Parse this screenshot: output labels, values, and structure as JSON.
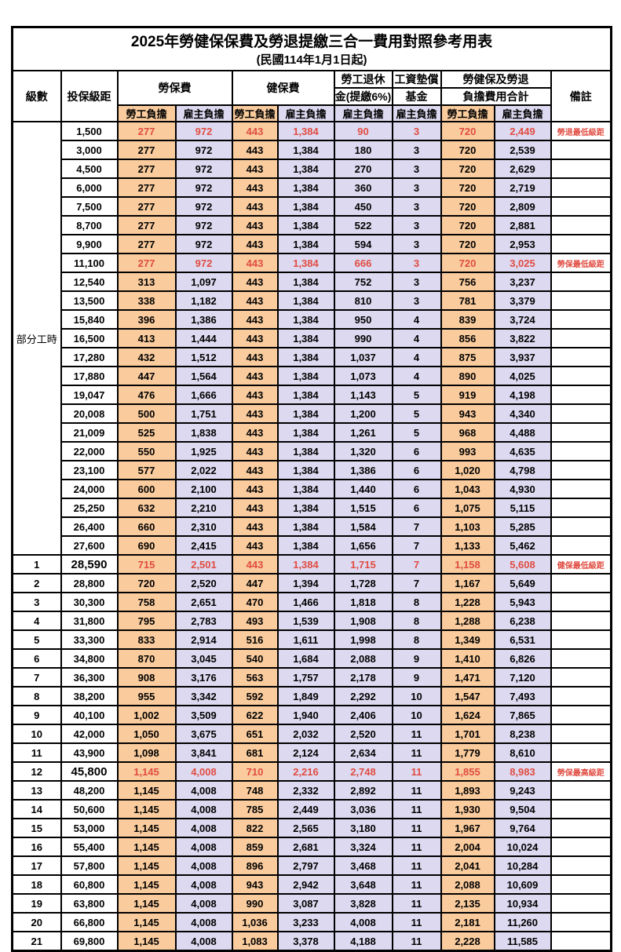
{
  "title": "2025年勞健保保費及勞退提繳三合一費用對照參考用表",
  "subtitle": "(民國114年1月1日起)",
  "colors": {
    "employee_col_bg": "#F9CB9D",
    "employer_col_bg": "#DDD9F0",
    "highlight_text": "#E04C41",
    "grid": "#000000"
  },
  "header": {
    "level": "級數",
    "bracket": "投保級距",
    "labor_insurance": "勞保費",
    "health_insurance": "健保費",
    "pension_line1": "勞工退休",
    "pension_line2": "金(提繳6%)",
    "wage_fund_line1": "工資墊償",
    "wage_fund_line2": "基金",
    "total_line1": "勞健保及勞退",
    "total_line2": "負擔費用合計",
    "note": "備註",
    "employee_share": "勞工負擔",
    "employer_share": "雇主負擔"
  },
  "part_time_label": "部分工時",
  "part_time_rowspan": 23,
  "column_kinds": [
    "emp",
    "er",
    "emp",
    "er",
    "er",
    "er",
    "emp",
    "er"
  ],
  "rows": [
    {
      "level": "",
      "bracket": "1,500",
      "values": [
        "277",
        "972",
        "443",
        "1,384",
        "90",
        "3",
        "720",
        "2,449"
      ],
      "note": "勞退最低級距",
      "red": true,
      "big": false
    },
    {
      "level": "",
      "bracket": "3,000",
      "values": [
        "277",
        "972",
        "443",
        "1,384",
        "180",
        "3",
        "720",
        "2,539"
      ],
      "note": "",
      "red": false,
      "big": false
    },
    {
      "level": "",
      "bracket": "4,500",
      "values": [
        "277",
        "972",
        "443",
        "1,384",
        "270",
        "3",
        "720",
        "2,629"
      ],
      "note": "",
      "red": false,
      "big": false
    },
    {
      "level": "",
      "bracket": "6,000",
      "values": [
        "277",
        "972",
        "443",
        "1,384",
        "360",
        "3",
        "720",
        "2,719"
      ],
      "note": "",
      "red": false,
      "big": false
    },
    {
      "level": "",
      "bracket": "7,500",
      "values": [
        "277",
        "972",
        "443",
        "1,384",
        "450",
        "3",
        "720",
        "2,809"
      ],
      "note": "",
      "red": false,
      "big": false
    },
    {
      "level": "",
      "bracket": "8,700",
      "values": [
        "277",
        "972",
        "443",
        "1,384",
        "522",
        "3",
        "720",
        "2,881"
      ],
      "note": "",
      "red": false,
      "big": false
    },
    {
      "level": "",
      "bracket": "9,900",
      "values": [
        "277",
        "972",
        "443",
        "1,384",
        "594",
        "3",
        "720",
        "2,953"
      ],
      "note": "",
      "red": false,
      "big": false
    },
    {
      "level": "",
      "bracket": "11,100",
      "values": [
        "277",
        "972",
        "443",
        "1,384",
        "666",
        "3",
        "720",
        "3,025"
      ],
      "note": "勞保最低級距",
      "red": true,
      "big": false
    },
    {
      "level": "",
      "bracket": "12,540",
      "values": [
        "313",
        "1,097",
        "443",
        "1,384",
        "752",
        "3",
        "756",
        "3,237"
      ],
      "note": "",
      "red": false,
      "big": false
    },
    {
      "level": "",
      "bracket": "13,500",
      "values": [
        "338",
        "1,182",
        "443",
        "1,384",
        "810",
        "3",
        "781",
        "3,379"
      ],
      "note": "",
      "red": false,
      "big": false
    },
    {
      "level": "",
      "bracket": "15,840",
      "values": [
        "396",
        "1,386",
        "443",
        "1,384",
        "950",
        "4",
        "839",
        "3,724"
      ],
      "note": "",
      "red": false,
      "big": false
    },
    {
      "level": "",
      "bracket": "16,500",
      "values": [
        "413",
        "1,444",
        "443",
        "1,384",
        "990",
        "4",
        "856",
        "3,822"
      ],
      "note": "",
      "red": false,
      "big": false
    },
    {
      "level": "",
      "bracket": "17,280",
      "values": [
        "432",
        "1,512",
        "443",
        "1,384",
        "1,037",
        "4",
        "875",
        "3,937"
      ],
      "note": "",
      "red": false,
      "big": false
    },
    {
      "level": "",
      "bracket": "17,880",
      "values": [
        "447",
        "1,564",
        "443",
        "1,384",
        "1,073",
        "4",
        "890",
        "4,025"
      ],
      "note": "",
      "red": false,
      "big": false
    },
    {
      "level": "",
      "bracket": "19,047",
      "values": [
        "476",
        "1,666",
        "443",
        "1,384",
        "1,143",
        "5",
        "919",
        "4,198"
      ],
      "note": "",
      "red": false,
      "big": false
    },
    {
      "level": "",
      "bracket": "20,008",
      "values": [
        "500",
        "1,751",
        "443",
        "1,384",
        "1,200",
        "5",
        "943",
        "4,340"
      ],
      "note": "",
      "red": false,
      "big": false
    },
    {
      "level": "",
      "bracket": "21,009",
      "values": [
        "525",
        "1,838",
        "443",
        "1,384",
        "1,261",
        "5",
        "968",
        "4,488"
      ],
      "note": "",
      "red": false,
      "big": false
    },
    {
      "level": "",
      "bracket": "22,000",
      "values": [
        "550",
        "1,925",
        "443",
        "1,384",
        "1,320",
        "6",
        "993",
        "4,635"
      ],
      "note": "",
      "red": false,
      "big": false
    },
    {
      "level": "",
      "bracket": "23,100",
      "values": [
        "577",
        "2,022",
        "443",
        "1,384",
        "1,386",
        "6",
        "1,020",
        "4,798"
      ],
      "note": "",
      "red": false,
      "big": false
    },
    {
      "level": "",
      "bracket": "24,000",
      "values": [
        "600",
        "2,100",
        "443",
        "1,384",
        "1,440",
        "6",
        "1,043",
        "4,930"
      ],
      "note": "",
      "red": false,
      "big": false
    },
    {
      "level": "",
      "bracket": "25,250",
      "values": [
        "632",
        "2,210",
        "443",
        "1,384",
        "1,515",
        "6",
        "1,075",
        "5,115"
      ],
      "note": "",
      "red": false,
      "big": false
    },
    {
      "level": "",
      "bracket": "26,400",
      "values": [
        "660",
        "2,310",
        "443",
        "1,384",
        "1,584",
        "7",
        "1,103",
        "5,285"
      ],
      "note": "",
      "red": false,
      "big": false
    },
    {
      "level": "",
      "bracket": "27,600",
      "values": [
        "690",
        "2,415",
        "443",
        "1,384",
        "1,656",
        "7",
        "1,133",
        "5,462"
      ],
      "note": "",
      "red": false,
      "big": false
    },
    {
      "level": "1",
      "bracket": "28,590",
      "values": [
        "715",
        "2,501",
        "443",
        "1,384",
        "1,715",
        "7",
        "1,158",
        "5,608"
      ],
      "note": "健保最低級距",
      "red": true,
      "big": true
    },
    {
      "level": "2",
      "bracket": "28,800",
      "values": [
        "720",
        "2,520",
        "447",
        "1,394",
        "1,728",
        "7",
        "1,167",
        "5,649"
      ],
      "note": "",
      "red": false,
      "big": false
    },
    {
      "level": "3",
      "bracket": "30,300",
      "values": [
        "758",
        "2,651",
        "470",
        "1,466",
        "1,818",
        "8",
        "1,228",
        "5,943"
      ],
      "note": "",
      "red": false,
      "big": false
    },
    {
      "level": "4",
      "bracket": "31,800",
      "values": [
        "795",
        "2,783",
        "493",
        "1,539",
        "1,908",
        "8",
        "1,288",
        "6,238"
      ],
      "note": "",
      "red": false,
      "big": false
    },
    {
      "level": "5",
      "bracket": "33,300",
      "values": [
        "833",
        "2,914",
        "516",
        "1,611",
        "1,998",
        "8",
        "1,349",
        "6,531"
      ],
      "note": "",
      "red": false,
      "big": false
    },
    {
      "level": "6",
      "bracket": "34,800",
      "values": [
        "870",
        "3,045",
        "540",
        "1,684",
        "2,088",
        "9",
        "1,410",
        "6,826"
      ],
      "note": "",
      "red": false,
      "big": false
    },
    {
      "level": "7",
      "bracket": "36,300",
      "values": [
        "908",
        "3,176",
        "563",
        "1,757",
        "2,178",
        "9",
        "1,471",
        "7,120"
      ],
      "note": "",
      "red": false,
      "big": false
    },
    {
      "level": "8",
      "bracket": "38,200",
      "values": [
        "955",
        "3,342",
        "592",
        "1,849",
        "2,292",
        "10",
        "1,547",
        "7,493"
      ],
      "note": "",
      "red": false,
      "big": false
    },
    {
      "level": "9",
      "bracket": "40,100",
      "values": [
        "1,002",
        "3,509",
        "622",
        "1,940",
        "2,406",
        "10",
        "1,624",
        "7,865"
      ],
      "note": "",
      "red": false,
      "big": false
    },
    {
      "level": "10",
      "bracket": "42,000",
      "values": [
        "1,050",
        "3,675",
        "651",
        "2,032",
        "2,520",
        "11",
        "1,701",
        "8,238"
      ],
      "note": "",
      "red": false,
      "big": false
    },
    {
      "level": "11",
      "bracket": "43,900",
      "values": [
        "1,098",
        "3,841",
        "681",
        "2,124",
        "2,634",
        "11",
        "1,779",
        "8,610"
      ],
      "note": "",
      "red": false,
      "big": false
    },
    {
      "level": "12",
      "bracket": "45,800",
      "values": [
        "1,145",
        "4,008",
        "710",
        "2,216",
        "2,748",
        "11",
        "1,855",
        "8,983"
      ],
      "note": "勞保最高級距",
      "red": true,
      "big": true
    },
    {
      "level": "13",
      "bracket": "48,200",
      "values": [
        "1,145",
        "4,008",
        "748",
        "2,332",
        "2,892",
        "11",
        "1,893",
        "9,243"
      ],
      "note": "",
      "red": false,
      "big": false
    },
    {
      "level": "14",
      "bracket": "50,600",
      "values": [
        "1,145",
        "4,008",
        "785",
        "2,449",
        "3,036",
        "11",
        "1,930",
        "9,504"
      ],
      "note": "",
      "red": false,
      "big": false
    },
    {
      "level": "15",
      "bracket": "53,000",
      "values": [
        "1,145",
        "4,008",
        "822",
        "2,565",
        "3,180",
        "11",
        "1,967",
        "9,764"
      ],
      "note": "",
      "red": false,
      "big": false
    },
    {
      "level": "16",
      "bracket": "55,400",
      "values": [
        "1,145",
        "4,008",
        "859",
        "2,681",
        "3,324",
        "11",
        "2,004",
        "10,024"
      ],
      "note": "",
      "red": false,
      "big": false
    },
    {
      "level": "17",
      "bracket": "57,800",
      "values": [
        "1,145",
        "4,008",
        "896",
        "2,797",
        "3,468",
        "11",
        "2,041",
        "10,284"
      ],
      "note": "",
      "red": false,
      "big": false
    },
    {
      "level": "18",
      "bracket": "60,800",
      "values": [
        "1,145",
        "4,008",
        "943",
        "2,942",
        "3,648",
        "11",
        "2,088",
        "10,609"
      ],
      "note": "",
      "red": false,
      "big": false
    },
    {
      "level": "19",
      "bracket": "63,800",
      "values": [
        "1,145",
        "4,008",
        "990",
        "3,087",
        "3,828",
        "11",
        "2,135",
        "10,934"
      ],
      "note": "",
      "red": false,
      "big": false
    },
    {
      "level": "20",
      "bracket": "66,800",
      "values": [
        "1,145",
        "4,008",
        "1,036",
        "3,233",
        "4,008",
        "11",
        "2,181",
        "11,260"
      ],
      "note": "",
      "red": false,
      "big": false
    },
    {
      "level": "21",
      "bracket": "69,800",
      "values": [
        "1,145",
        "4,008",
        "1,083",
        "3,378",
        "4,188",
        "11",
        "2,228",
        "11,585"
      ],
      "note": "",
      "red": false,
      "big": false
    }
  ]
}
